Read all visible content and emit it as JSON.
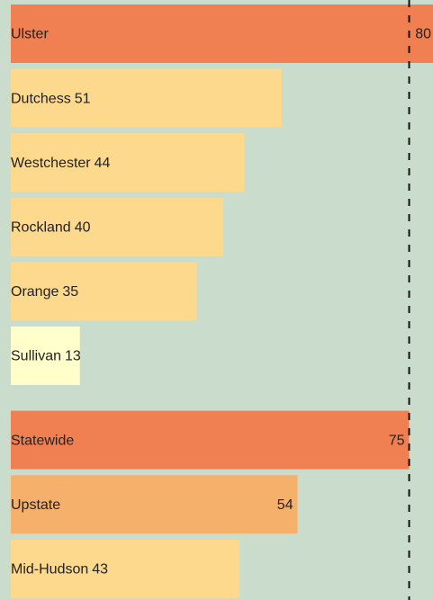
{
  "chart_data": {
    "type": "bar",
    "categories": [
      "Ulster",
      "Dutchess",
      "Westchester",
      "Rockland",
      "Orange",
      "Sullivan",
      "Statewide",
      "Upstate",
      "Mid-Hudson"
    ],
    "values": [
      80,
      51,
      44,
      40,
      35,
      13,
      75,
      54,
      43
    ],
    "colors": [
      "#f07f51",
      "#fdd98e",
      "#fdd98e",
      "#fdd98e",
      "#fdd98e",
      "#ffffcc",
      "#f07f51",
      "#f5b06b",
      "#fdd98e"
    ]
  }
}
